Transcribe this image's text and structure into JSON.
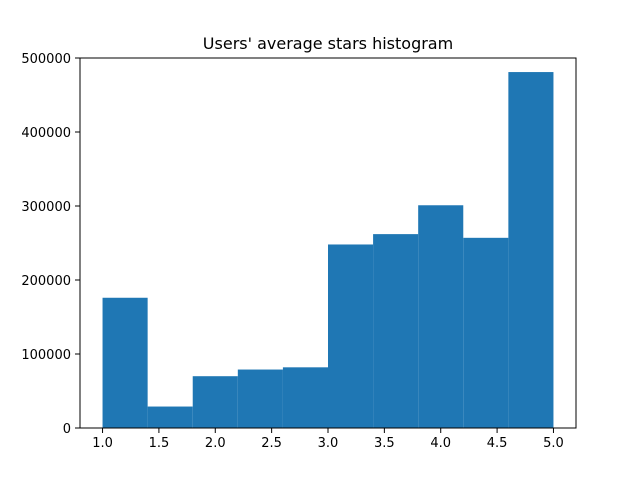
{
  "chart_data": {
    "type": "bar",
    "title": "Users' average stars histogram",
    "xlabel": "",
    "ylabel": "",
    "bin_edges": [
      1.0,
      1.4,
      1.8,
      2.2,
      2.6,
      3.0,
      3.4,
      3.8,
      4.2,
      4.6,
      5.0
    ],
    "values": [
      176000,
      29000,
      70000,
      79000,
      82000,
      248000,
      262000,
      301000,
      257000,
      481000
    ],
    "xlim": [
      0.8,
      5.2
    ],
    "ylim": [
      0,
      500000
    ],
    "x_ticks": [
      1.0,
      1.5,
      2.0,
      2.5,
      3.0,
      3.5,
      4.0,
      4.5,
      5.0
    ],
    "x_tick_labels": [
      "1.0",
      "1.5",
      "2.0",
      "2.5",
      "3.0",
      "3.5",
      "4.0",
      "4.5",
      "5.0"
    ],
    "y_ticks": [
      0,
      100000,
      200000,
      300000,
      400000,
      500000
    ],
    "y_tick_labels": [
      "0",
      "100000",
      "200000",
      "300000",
      "400000",
      "500000"
    ],
    "bar_color": "#1f77b4",
    "grid": false,
    "legend": "none"
  }
}
